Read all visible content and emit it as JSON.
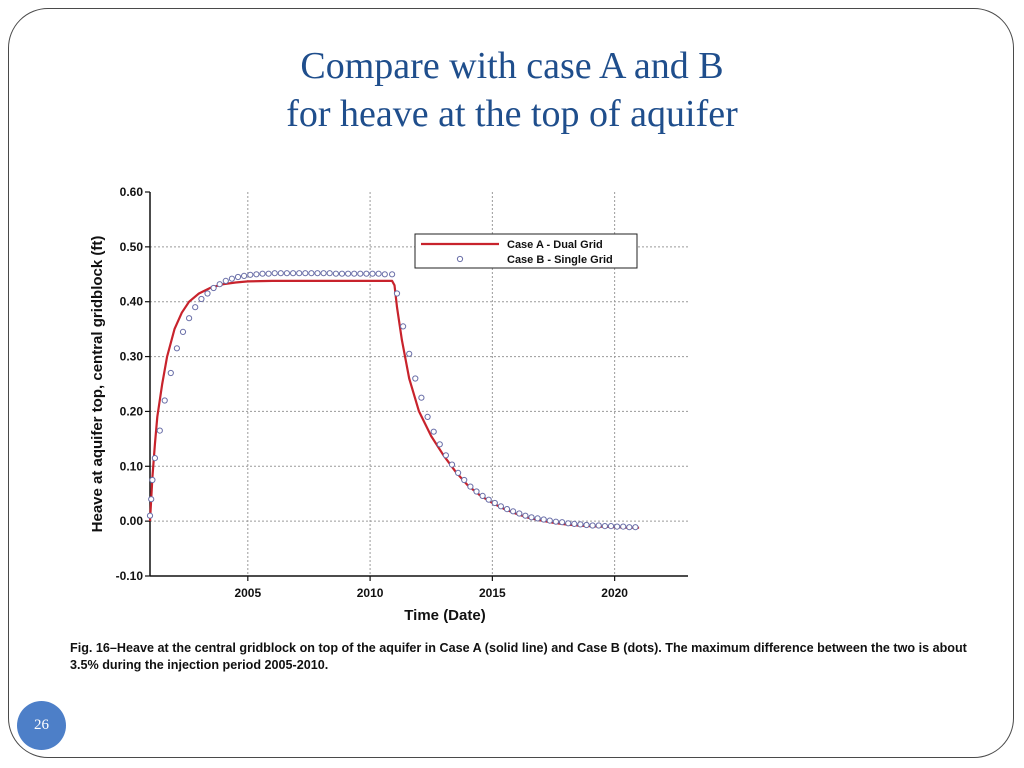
{
  "slide": {
    "title_line1": "Compare with case A and B",
    "title_line2": "for heave at the top of aquifer",
    "caption": "Fig. 16–Heave at the central gridblock on top of the aquifer in Case A (solid line) and Case B (dots). The maximum difference between the two is about 3.5% during the injection period 2005-2010.",
    "page_number": "26"
  },
  "colors": {
    "title": "#1f4e8c",
    "case_a": "#c8232c",
    "case_b_marker": "#6a6fa8",
    "page_badge": "#4d7fc8"
  },
  "chart_data": {
    "type": "line",
    "xlabel": "Time (Date)",
    "ylabel": "Heave at aquifer top, central gridblock (ft)",
    "xlim": [
      2001,
      2023
    ],
    "ylim": [
      -0.1,
      0.6
    ],
    "xticks": [
      2005,
      2010,
      2015,
      2020
    ],
    "yticks": [
      -0.1,
      0.0,
      0.1,
      0.2,
      0.3,
      0.4,
      0.5,
      0.6
    ],
    "ytick_labels": [
      "-0.10",
      "0.00",
      "0.10",
      "0.20",
      "0.30",
      "0.40",
      "0.50",
      "0.60"
    ],
    "grid": true,
    "legend_position": "top-right",
    "series": [
      {
        "name": "Case A - Dual Grid",
        "style": "solid-line",
        "x": [
          2001.0,
          2001.05,
          2001.1,
          2001.2,
          2001.3,
          2001.5,
          2001.7,
          2002.0,
          2002.3,
          2002.6,
          2003.0,
          2003.5,
          2004.0,
          2004.5,
          2005.0,
          2006.0,
          2007.0,
          2008.0,
          2009.0,
          2010.0,
          2010.9,
          2011.0,
          2011.1,
          2011.3,
          2011.6,
          2012.0,
          2012.5,
          2013.0,
          2013.5,
          2014.0,
          2014.5,
          2015.0,
          2015.5,
          2016.0,
          2016.5,
          2017.0,
          2017.5,
          2018.0,
          2018.5,
          2019.0,
          2019.5,
          2020.0,
          2020.5,
          2021.0
        ],
        "y": [
          0.0,
          0.04,
          0.08,
          0.14,
          0.19,
          0.25,
          0.3,
          0.35,
          0.38,
          0.4,
          0.415,
          0.426,
          0.432,
          0.435,
          0.437,
          0.438,
          0.438,
          0.438,
          0.438,
          0.438,
          0.438,
          0.43,
          0.39,
          0.33,
          0.26,
          0.2,
          0.155,
          0.12,
          0.09,
          0.065,
          0.047,
          0.033,
          0.022,
          0.013,
          0.006,
          0.001,
          -0.003,
          -0.006,
          -0.008,
          -0.009,
          -0.01,
          -0.011,
          -0.012,
          -0.012
        ]
      },
      {
        "name": "Case B - Single Grid",
        "style": "open-circles",
        "x": [
          2001.0,
          2001.05,
          2001.1,
          2001.2,
          2001.4,
          2001.6,
          2001.85,
          2002.1,
          2002.35,
          2002.6,
          2002.85,
          2003.1,
          2003.35,
          2003.6,
          2003.85,
          2004.1,
          2004.35,
          2004.6,
          2004.85,
          2005.1,
          2005.35,
          2005.6,
          2005.85,
          2006.1,
          2006.35,
          2006.6,
          2006.85,
          2007.1,
          2007.35,
          2007.6,
          2007.85,
          2008.1,
          2008.35,
          2008.6,
          2008.85,
          2009.1,
          2009.35,
          2009.6,
          2009.85,
          2010.1,
          2010.35,
          2010.6,
          2010.9,
          2011.1,
          2011.35,
          2011.6,
          2011.85,
          2012.1,
          2012.35,
          2012.6,
          2012.85,
          2013.1,
          2013.35,
          2013.6,
          2013.85,
          2014.1,
          2014.35,
          2014.6,
          2014.85,
          2015.1,
          2015.35,
          2015.6,
          2015.85,
          2016.1,
          2016.35,
          2016.6,
          2016.85,
          2017.1,
          2017.35,
          2017.6,
          2017.85,
          2018.1,
          2018.35,
          2018.6,
          2018.85,
          2019.1,
          2019.35,
          2019.6,
          2019.85,
          2020.1,
          2020.35,
          2020.6,
          2020.85
        ],
        "y": [
          0.01,
          0.04,
          0.075,
          0.115,
          0.165,
          0.22,
          0.27,
          0.315,
          0.345,
          0.37,
          0.39,
          0.405,
          0.415,
          0.425,
          0.432,
          0.438,
          0.442,
          0.445,
          0.447,
          0.449,
          0.45,
          0.451,
          0.451,
          0.452,
          0.452,
          0.452,
          0.452,
          0.452,
          0.452,
          0.452,
          0.452,
          0.452,
          0.452,
          0.451,
          0.451,
          0.451,
          0.451,
          0.451,
          0.451,
          0.451,
          0.451,
          0.45,
          0.45,
          0.415,
          0.355,
          0.305,
          0.26,
          0.225,
          0.19,
          0.163,
          0.14,
          0.12,
          0.103,
          0.088,
          0.075,
          0.063,
          0.054,
          0.046,
          0.039,
          0.033,
          0.027,
          0.022,
          0.018,
          0.014,
          0.01,
          0.007,
          0.005,
          0.003,
          0.001,
          -0.001,
          -0.002,
          -0.004,
          -0.005,
          -0.006,
          -0.007,
          -0.008,
          -0.008,
          -0.009,
          -0.009,
          -0.01,
          -0.01,
          -0.011,
          -0.011
        ]
      }
    ]
  }
}
